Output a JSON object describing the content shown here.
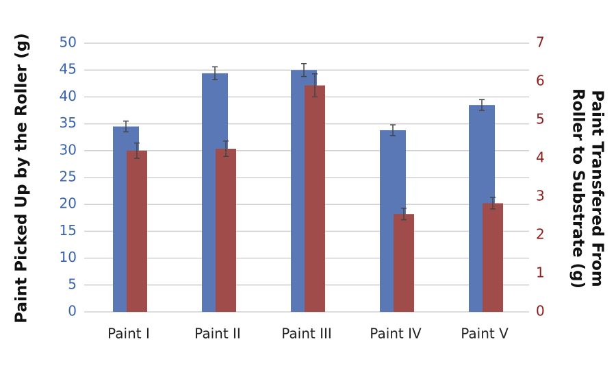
{
  "chart_data": {
    "type": "bar",
    "categories": [
      "Paint I",
      "Paint II",
      "Paint III",
      "Paint IV",
      "Paint V"
    ],
    "y_label": "Paint Picked Up by the Roller (g)",
    "y2_label": [
      "Paint Transfered From",
      "Roller to Substrate (g)"
    ],
    "series": [
      {
        "color": "#5a78b5",
        "values": [
          34.5,
          44.4,
          45,
          33.8,
          38.5
        ],
        "errors": [
          1,
          1.2,
          1.2,
          1,
          1
        ]
      },
      {
        "color": "#a04c4a",
        "axis": "y2",
        "values": [
          4.2,
          4.25,
          5.9,
          2.55,
          2.83
        ],
        "errors": [
          0.2,
          0.2,
          0.3,
          0.15,
          0.15
        ]
      }
    ],
    "ylim": [
      0,
      50
    ],
    "yticks": [
      0,
      5,
      10,
      15,
      20,
      25,
      30,
      35,
      40,
      45,
      50
    ],
    "y2lim": [
      0,
      7
    ],
    "y2ticks": [
      0,
      1,
      2,
      3,
      4,
      5,
      6,
      7
    ],
    "y_color": "#3a63ad",
    "y2_color": "#8b1c1c",
    "grid": true
  }
}
